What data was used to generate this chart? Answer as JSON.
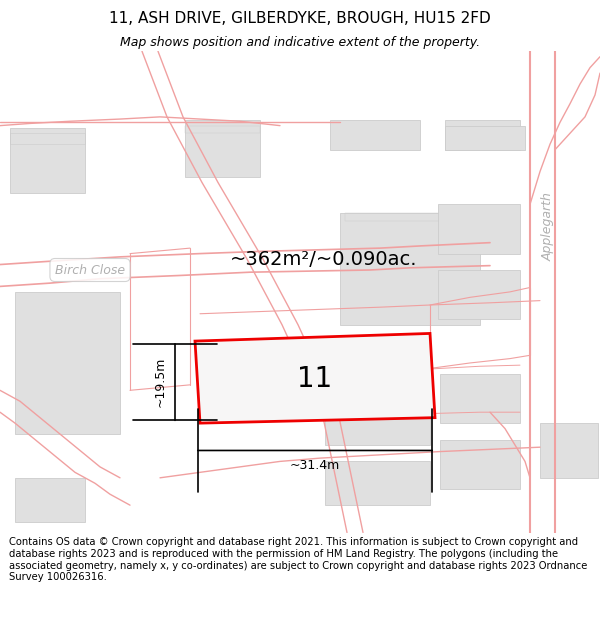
{
  "title": "11, ASH DRIVE, GILBERDYKE, BROUGH, HU15 2FD",
  "subtitle": "Map shows position and indicative extent of the property.",
  "footer": "Contains OS data © Crown copyright and database right 2021. This information is subject to Crown copyright and database rights 2023 and is reproduced with the permission of HM Land Registry. The polygons (including the associated geometry, namely x, y co-ordinates) are subject to Crown copyright and database rights 2023 Ordnance Survey 100026316.",
  "area_text": "~362m²/~0.090ac.",
  "width_text": "~31.4m",
  "height_text": "~19.5m",
  "property_number": "11",
  "bg_color": "#ffffff",
  "map_bg": "#f7f6f6",
  "road_color": "#f0a0a0",
  "road_lw": 1.0,
  "building_color": "#e0e0e0",
  "building_edge": "#cccccc",
  "highlight_color": "#ee0000",
  "highlight_fill": "#f7f6f6",
  "street_label_color": "#bbbbbb",
  "title_fontsize": 11,
  "subtitle_fontsize": 9,
  "footer_fontsize": 7.2,
  "annotation_fontsize": 14,
  "dim_fontsize": 9,
  "num_fontsize": 20
}
